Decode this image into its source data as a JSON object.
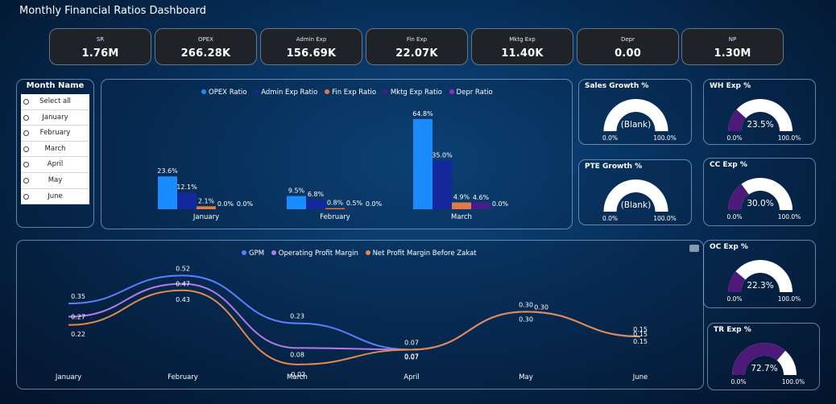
{
  "title": "Monthly Financial Ratios Dashboard",
  "kpis": [
    {
      "label": "SR",
      "value": "1.76M"
    },
    {
      "label": "OPEX",
      "value": "266.28K"
    },
    {
      "label": "Admin Exp",
      "value": "156.69K"
    },
    {
      "label": "Fin Exp",
      "value": "22.07K"
    },
    {
      "label": "Mktg Exp",
      "value": "11.40K"
    },
    {
      "label": "Depr",
      "value": "0.00"
    },
    {
      "label": "NP",
      "value": "1.30M"
    }
  ],
  "slicer": {
    "title": "Month Name",
    "items": [
      "Select all",
      "January",
      "February",
      "March",
      "April",
      "May",
      "June"
    ]
  },
  "colors": {
    "opex": "#1a8cff",
    "admin": "#13289c",
    "fin": "#e07a4a",
    "mktg": "#4b1a8c",
    "depr": "#9b2bc0",
    "gpm": "#5b7fff",
    "opm": "#b07ce8",
    "npm": "#e58a4e",
    "gauge_fill": "#4e1a7a",
    "gauge_track": "#ffffff"
  },
  "chart_data": [
    {
      "type": "bar",
      "categories": [
        "January",
        "February",
        "March"
      ],
      "series": [
        {
          "name": "OPEX Ratio",
          "values": [
            23.6,
            9.5,
            64.8
          ],
          "labels": [
            "23.6%",
            "9.5%",
            "64.8%"
          ]
        },
        {
          "name": "Admin Exp Ratio",
          "values": [
            12.1,
            6.8,
            35.0
          ],
          "labels": [
            "12.1%",
            "6.8%",
            "35.0%"
          ]
        },
        {
          "name": "Fin Exp Ratio",
          "values": [
            2.1,
            0.8,
            4.9
          ],
          "labels": [
            "2.1%",
            "0.8%",
            "4.9%"
          ]
        },
        {
          "name": "Mktg Exp Ratio",
          "values": [
            0.0,
            0.5,
            4.6
          ],
          "labels": [
            "0.0%",
            "0.5%",
            "4.6%"
          ]
        },
        {
          "name": "Depr Ratio",
          "values": [
            0.0,
            0.0,
            0.0
          ],
          "labels": [
            "0.0%",
            "0.0%",
            "0.0%"
          ]
        }
      ],
      "legend": "top",
      "ylim": [
        0,
        70
      ]
    },
    {
      "type": "line",
      "categories": [
        "January",
        "February",
        "March",
        "April",
        "May",
        "June"
      ],
      "series": [
        {
          "name": "GPM",
          "values": [
            0.35,
            0.52,
            0.23,
            0.07,
            0.3,
            0.15
          ],
          "labels": [
            "0.35",
            "0.52",
            "0.23",
            "0.07",
            "0.30",
            "0.15"
          ]
        },
        {
          "name": "Operating Profit Margin",
          "values": [
            0.27,
            0.47,
            0.08,
            0.07,
            0.3,
            0.15
          ],
          "labels": [
            "0.27",
            "0.47",
            "0.08",
            "0.07",
            "0.30",
            "0.15"
          ]
        },
        {
          "name": "Net Profit Margin Before Zakat",
          "values": [
            0.22,
            0.43,
            -0.02,
            0.07,
            0.3,
            0.15
          ],
          "labels": [
            "0.22",
            "0.43",
            "-0.02",
            "0.07",
            "0.30",
            "0.15"
          ]
        }
      ],
      "legend": "top",
      "ylim": [
        -0.05,
        0.6
      ]
    },
    {
      "type": "gauge",
      "title": "Sales Growth %",
      "value_label": "(Blank)",
      "value": null,
      "min_label": "0.0%",
      "max_label": "100.0%"
    },
    {
      "type": "gauge",
      "title": "PTE Growth %",
      "value_label": "(Blank)",
      "value": null,
      "min_label": "0.0%",
      "max_label": "100.0%"
    },
    {
      "type": "gauge",
      "title": "WH Exp %",
      "value_label": "23.5%",
      "value": 23.5,
      "min_label": "0.0%",
      "max_label": "100.0%"
    },
    {
      "type": "gauge",
      "title": "CC Exp %",
      "value_label": "30.0%",
      "value": 30.0,
      "min_label": "0.0%",
      "max_label": "100.0%"
    },
    {
      "type": "gauge",
      "title": "OC Exp %",
      "value_label": "22.3%",
      "value": 22.3,
      "min_label": "0.0%",
      "max_label": "100.0%"
    },
    {
      "type": "gauge",
      "title": "TR Exp %",
      "value_label": "72.7%",
      "value": 72.7,
      "min_label": "0.0%",
      "max_label": "100.0%"
    }
  ]
}
